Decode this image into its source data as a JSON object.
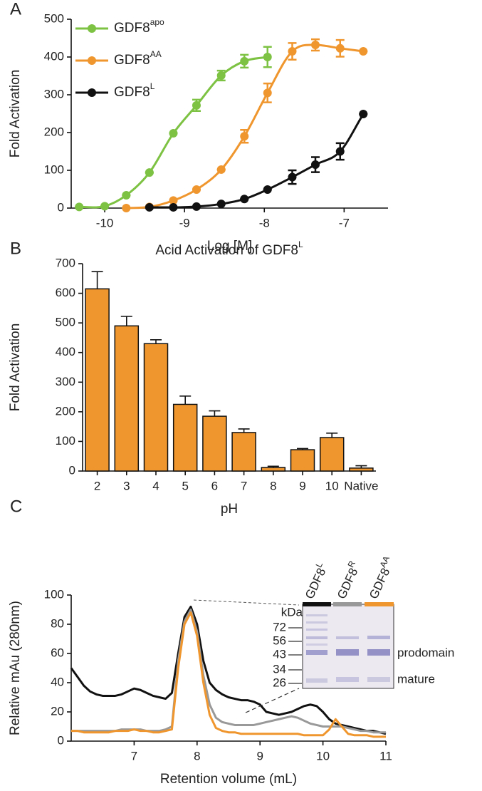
{
  "chart_data": [
    {
      "type": "scatter",
      "panel_label": "A",
      "xlabel": "Log [M]",
      "ylabel": "Fold Activation",
      "xlim": [
        -10.42,
        -6.45
      ],
      "xticks": [
        -10,
        -9,
        -8,
        -7
      ],
      "ylim": [
        0,
        500
      ],
      "yticks": [
        0,
        100,
        200,
        300,
        400,
        500
      ],
      "legend": "upper left",
      "fit_curve": true,
      "series": [
        {
          "name": "GDF8",
          "name_sup": "apo",
          "color": "#7dc242",
          "x": [
            -10.32,
            -10.0,
            -9.73,
            -9.44,
            -9.14,
            -8.85,
            -8.54,
            -8.25,
            -7.96
          ],
          "values": [
            3,
            5,
            34,
            94,
            198,
            272,
            351,
            389,
            400
          ],
          "errors": [
            0,
            0,
            0,
            0,
            0,
            15,
            13,
            17,
            27
          ]
        },
        {
          "name": "GDF8",
          "name_sup": "AA",
          "color": "#f0962e",
          "x": [
            -9.73,
            -9.44,
            -9.14,
            -8.85,
            -8.54,
            -8.25,
            -7.96,
            -7.65,
            -7.36,
            -7.05,
            -6.76
          ],
          "values": [
            0,
            3,
            20,
            49,
            102,
            190,
            305,
            415,
            432,
            423,
            415
          ],
          "errors": [
            0,
            0,
            0,
            0,
            0,
            17,
            25,
            22,
            15,
            22,
            0
          ]
        },
        {
          "name": "GDF8",
          "name_sup": "L",
          "color": "#111111",
          "x": [
            -9.44,
            -9.14,
            -8.85,
            -8.54,
            -8.25,
            -7.96,
            -7.65,
            -7.36,
            -7.05,
            -6.76
          ],
          "values": [
            2,
            2,
            4,
            11,
            24,
            49,
            82,
            115,
            150,
            249
          ],
          "errors": [
            0,
            0,
            0,
            0,
            0,
            0,
            18,
            20,
            22,
            0
          ]
        }
      ]
    },
    {
      "type": "bar",
      "panel_label": "B",
      "title": "Acid Activation of GDF8",
      "title_sup": "L",
      "xlabel": "pH",
      "ylabel": "Fold Activation",
      "categories": [
        "2",
        "3",
        "4",
        "5",
        "6",
        "7",
        "8",
        "9",
        "10",
        "Native"
      ],
      "values": [
        615,
        490,
        430,
        225,
        185,
        130,
        12,
        72,
        113,
        10
      ],
      "errors": [
        58,
        32,
        13,
        28,
        18,
        12,
        4,
        4,
        15,
        8
      ],
      "color": "#f0962e",
      "ylim": [
        0,
        700
      ],
      "yticks": [
        0,
        100,
        200,
        300,
        400,
        500,
        600,
        700
      ]
    },
    {
      "type": "line",
      "panel_label": "C",
      "xlabel": "Retention volume (mL)",
      "ylabel": "Relative mAu (280nm)",
      "xlim": [
        6,
        11
      ],
      "xticks": [
        7,
        8,
        9,
        10,
        11
      ],
      "ylim": [
        0,
        100
      ],
      "yticks": [
        0,
        20,
        40,
        60,
        80,
        100
      ],
      "x": [
        6.0,
        6.1,
        6.2,
        6.3,
        6.4,
        6.5,
        6.6,
        6.7,
        6.8,
        6.9,
        7.0,
        7.1,
        7.2,
        7.3,
        7.4,
        7.5,
        7.6,
        7.7,
        7.8,
        7.9,
        8.0,
        8.1,
        8.2,
        8.3,
        8.4,
        8.5,
        8.6,
        8.7,
        8.8,
        8.9,
        9.0,
        9.1,
        9.2,
        9.3,
        9.4,
        9.5,
        9.6,
        9.7,
        9.8,
        9.9,
        10.0,
        10.1,
        10.2,
        10.3,
        10.4,
        10.5,
        10.6,
        10.7,
        10.8,
        10.9,
        11.0
      ],
      "series": [
        {
          "color": "#111111",
          "values": [
            50,
            44,
            38,
            34,
            32,
            31,
            31,
            31,
            32,
            34,
            36,
            35,
            33,
            31,
            30,
            29,
            33,
            60,
            85,
            92,
            80,
            55,
            40,
            35,
            32,
            30,
            29,
            28,
            28,
            27,
            25,
            20,
            19,
            18,
            19,
            20,
            22,
            24,
            25,
            24,
            20,
            15,
            12,
            11,
            10,
            9,
            8,
            7,
            7,
            6,
            5
          ]
        },
        {
          "color": "#999999",
          "values": [
            7,
            7,
            7,
            7,
            7,
            7,
            7,
            7,
            8,
            8,
            8,
            8,
            7,
            7,
            7,
            8,
            10,
            55,
            82,
            90,
            75,
            45,
            25,
            16,
            13,
            12,
            11,
            11,
            11,
            11,
            12,
            13,
            14,
            15,
            16,
            17,
            16,
            14,
            12,
            11,
            10,
            10,
            10,
            10,
            9,
            8,
            7,
            7,
            6,
            6,
            6
          ]
        },
        {
          "color": "#f0962e",
          "values": [
            7,
            7,
            6,
            6,
            6,
            6,
            6,
            7,
            7,
            7,
            8,
            7,
            7,
            6,
            6,
            7,
            8,
            50,
            80,
            88,
            72,
            40,
            18,
            9,
            7,
            6,
            6,
            5,
            5,
            5,
            5,
            5,
            5,
            5,
            5,
            5,
            5,
            4,
            4,
            4,
            4,
            8,
            15,
            10,
            5,
            4,
            4,
            4,
            3,
            3,
            3
          ]
        }
      ],
      "inset": {
        "lanes": [
          {
            "label": "GDF8",
            "sup": "L"
          },
          {
            "label": "GDF8",
            "sup": "R"
          },
          {
            "label": "GDF8",
            "sup": "AA"
          }
        ],
        "unit": "kDa",
        "markers": [
          72,
          56,
          43,
          34,
          26
        ],
        "band_labels": [
          "prodomain",
          "mature"
        ]
      }
    }
  ]
}
